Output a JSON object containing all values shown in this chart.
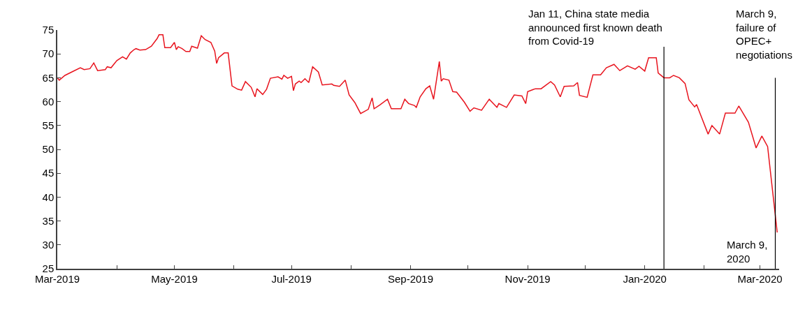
{
  "chart_data": {
    "type": "line",
    "x": [
      "2019-03-01",
      "2019-03-02",
      "2019-03-05",
      "2019-03-09",
      "2019-03-13",
      "2019-03-15",
      "2019-03-18",
      "2019-03-20",
      "2019-03-22",
      "2019-03-26",
      "2019-03-27",
      "2019-03-29",
      "2019-04-01",
      "2019-04-04",
      "2019-04-06",
      "2019-04-08",
      "2019-04-10",
      "2019-04-11",
      "2019-04-13",
      "2019-04-16",
      "2019-04-19",
      "2019-04-22",
      "2019-04-23",
      "2019-04-25",
      "2019-04-26",
      "2019-04-29",
      "2019-05-01",
      "2019-05-02",
      "2019-05-03",
      "2019-05-05",
      "2019-05-07",
      "2019-05-09",
      "2019-05-10",
      "2019-05-13",
      "2019-05-15",
      "2019-05-17",
      "2019-05-20",
      "2019-05-22",
      "2019-05-23",
      "2019-05-24",
      "2019-05-27",
      "2019-05-29",
      "2019-05-31",
      "2019-06-03",
      "2019-06-05",
      "2019-06-07",
      "2019-06-10",
      "2019-06-12",
      "2019-06-13",
      "2019-06-16",
      "2019-06-18",
      "2019-06-20",
      "2019-06-24",
      "2019-06-26",
      "2019-06-27",
      "2019-06-29",
      "2019-07-01",
      "2019-07-02",
      "2019-07-03",
      "2019-07-05",
      "2019-07-06",
      "2019-07-08",
      "2019-07-10",
      "2019-07-12",
      "2019-07-15",
      "2019-07-17",
      "2019-07-22",
      "2019-07-23",
      "2019-07-26",
      "2019-07-29",
      "2019-07-31",
      "2019-08-03",
      "2019-08-06",
      "2019-08-10",
      "2019-08-12",
      "2019-08-13",
      "2019-08-16",
      "2019-08-20",
      "2019-08-22",
      "2019-08-27",
      "2019-08-29",
      "2019-08-31",
      "2019-09-03",
      "2019-09-04",
      "2019-09-06",
      "2019-09-09",
      "2019-09-11",
      "2019-09-13",
      "2019-09-16",
      "2019-09-17",
      "2019-09-18",
      "2019-09-21",
      "2019-09-23",
      "2019-09-25",
      "2019-09-29",
      "2019-10-02",
      "2019-10-04",
      "2019-10-08",
      "2019-10-12",
      "2019-10-16",
      "2019-10-17",
      "2019-10-21",
      "2019-10-25",
      "2019-10-29",
      "2019-10-31",
      "2019-11-01",
      "2019-11-05",
      "2019-11-08",
      "2019-11-13",
      "2019-11-15",
      "2019-11-18",
      "2019-11-20",
      "2019-11-25",
      "2019-11-27",
      "2019-11-28",
      "2019-12-02",
      "2019-12-05",
      "2019-12-09",
      "2019-12-12",
      "2019-12-16",
      "2019-12-19",
      "2019-12-23",
      "2019-12-27",
      "2019-12-29",
      "2020-01-01",
      "2020-01-03",
      "2020-01-07",
      "2020-01-08",
      "2020-01-11",
      "2020-01-14",
      "2020-01-16",
      "2020-01-19",
      "2020-01-22",
      "2020-01-24",
      "2020-01-27",
      "2020-01-28",
      "2020-02-03",
      "2020-02-05",
      "2020-02-09",
      "2020-02-12",
      "2020-02-17",
      "2020-02-19",
      "2020-02-24",
      "2020-02-28",
      "2020-03-02",
      "2020-03-05",
      "2020-03-10"
    ],
    "series": [
      {
        "color": "#e8141e",
        "values": [
          65.0,
          64.5,
          65.5,
          66.3,
          67.1,
          66.7,
          66.9,
          68.1,
          66.5,
          66.7,
          67.3,
          67.1,
          68.6,
          69.4,
          68.9,
          70.2,
          70.9,
          71.1,
          70.8,
          70.9,
          71.6,
          73.2,
          74.0,
          74.0,
          71.3,
          71.3,
          72.4,
          70.9,
          71.5,
          71.1,
          70.5,
          70.5,
          71.6,
          71.2,
          73.8,
          73.0,
          72.4,
          70.6,
          68.0,
          69.2,
          70.2,
          70.2,
          63.3,
          62.6,
          62.4,
          64.2,
          63.0,
          61.0,
          62.7,
          61.5,
          62.6,
          64.9,
          65.2,
          64.7,
          65.5,
          64.9,
          65.3,
          62.3,
          63.7,
          64.3,
          64.0,
          64.8,
          64.0,
          67.3,
          66.2,
          63.5,
          63.7,
          63.4,
          63.2,
          64.5,
          61.4,
          59.8,
          57.5,
          58.4,
          60.8,
          58.5,
          59.3,
          60.5,
          58.5,
          58.5,
          60.5,
          59.6,
          59.2,
          58.8,
          61.0,
          62.7,
          63.3,
          60.5,
          68.4,
          64.3,
          64.8,
          64.5,
          62.1,
          62.0,
          59.9,
          58.0,
          58.7,
          58.2,
          60.5,
          58.8,
          59.6,
          58.8,
          61.4,
          61.2,
          59.6,
          62.1,
          62.7,
          62.7,
          64.2,
          63.5,
          61.0,
          63.2,
          63.3,
          64.0,
          61.3,
          60.9,
          65.6,
          65.6,
          67.1,
          67.8,
          66.5,
          67.5,
          66.8,
          67.4,
          66.4,
          69.2,
          69.2,
          66.0,
          65.0,
          65.0,
          65.5,
          65.0,
          63.8,
          60.4,
          58.9,
          59.4,
          53.2,
          55.0,
          53.2,
          57.6,
          57.6,
          59.1,
          55.7,
          50.3,
          52.8,
          50.6,
          32.6
        ]
      }
    ],
    "xlim": [
      "2019-03-01",
      "2020-03-11"
    ],
    "xticks": [
      {
        "value": "2019-03-01",
        "label": "Mar-2019"
      },
      {
        "value": "2019-04-01",
        "label": null
      },
      {
        "value": "2019-05-01",
        "label": "May-2019"
      },
      {
        "value": "2019-06-01",
        "label": null
      },
      {
        "value": "2019-07-01",
        "label": "Jul-2019"
      },
      {
        "value": "2019-08-01",
        "label": null
      },
      {
        "value": "2019-09-01",
        "label": "Sep-2019"
      },
      {
        "value": "2019-10-01",
        "label": null
      },
      {
        "value": "2019-11-01",
        "label": "Nov-2019"
      },
      {
        "value": "2019-12-01",
        "label": null
      },
      {
        "value": "2020-01-01",
        "label": "Jan-2020"
      },
      {
        "value": "2020-02-01",
        "label": null
      },
      {
        "value": "2020-03-01",
        "label": "Mar-2020"
      }
    ],
    "ylim": [
      25,
      75
    ],
    "yticks": [
      25,
      30,
      35,
      40,
      45,
      50,
      55,
      60,
      65,
      70,
      75
    ],
    "ref_lines": [
      {
        "axis": "x",
        "value": "2020-01-11",
        "label": "Jan 11, China state media announced first known death from Covid-19",
        "color": "#000000"
      },
      {
        "axis": "x",
        "value": "2020-03-09",
        "label": "March 9, failure of OPEC+ negotiations",
        "color": "#000000"
      }
    ],
    "annotations": [
      "March 9, 2020"
    ]
  }
}
